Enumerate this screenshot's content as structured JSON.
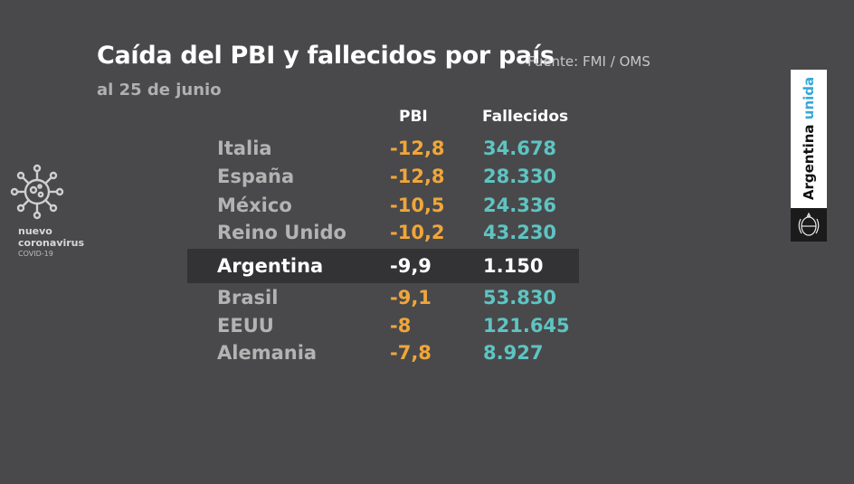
{
  "header": {
    "title": "Caída del PBI y fallecidos por país",
    "source": "Fuente: FMI / OMS",
    "subtitle": "al 25 de junio"
  },
  "chart_data": {
    "type": "table",
    "title": "Caída del PBI y fallecidos por país",
    "subtitle": "al 25 de junio",
    "columns": [
      "PBI",
      "Fallecidos"
    ],
    "rows": [
      {
        "country": "Italia",
        "pbi": "-12,8",
        "fallecidos": "34.678"
      },
      {
        "country": "España",
        "pbi": "-12,8",
        "fallecidos": "28.330"
      },
      {
        "country": "México",
        "pbi": "-10,5",
        "fallecidos": "24.336"
      },
      {
        "country": "Reino Unido",
        "pbi": "-10,2",
        "fallecidos": "43.230"
      },
      {
        "country": "Argentina",
        "pbi": "-9,9",
        "fallecidos": "1.150",
        "highlight": true
      },
      {
        "country": "Brasil",
        "pbi": "-9,1",
        "fallecidos": "53.830"
      },
      {
        "country": "EEUU",
        "pbi": "-8",
        "fallecidos": "121.645"
      },
      {
        "country": "Alemania",
        "pbi": "-7,8",
        "fallecidos": "8.927"
      }
    ]
  },
  "colors": {
    "background": "#49494b",
    "pbi": "#f0a63a",
    "fallecidos": "#5ec4c2",
    "highlight_band": "#333335"
  },
  "logo": {
    "icon": "coronavirus-icon",
    "line1": "nuevo",
    "line2": "coronavirus",
    "line3": "COVID-19"
  },
  "brand": {
    "word1": "Argentina",
    "word2": "unida",
    "icon": "national-emblem-icon"
  }
}
